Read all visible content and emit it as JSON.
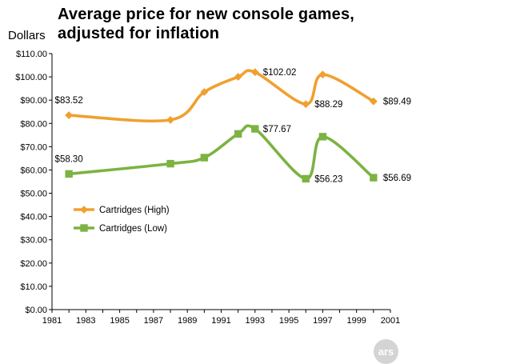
{
  "chart_data": {
    "type": "line",
    "title_lines": [
      "Average price for new console games,",
      "adjusted for inflation"
    ],
    "ylabel": "Dollars",
    "xlabel": "",
    "xlim": [
      1981,
      2001
    ],
    "ylim": [
      0,
      110
    ],
    "x_ticks": [
      "1981",
      "1983",
      "1985",
      "1987",
      "1989",
      "1991",
      "1993",
      "1995",
      "1997",
      "1999",
      "2001"
    ],
    "y_ticks": [
      "$0.00",
      "$10.00",
      "$20.00",
      "$30.00",
      "$40.00",
      "$50.00",
      "$60.00",
      "$70.00",
      "$80.00",
      "$90.00",
      "$100.00",
      "$110.00"
    ],
    "grid": false,
    "legend_position": "left-middle",
    "series": [
      {
        "name": "Cartridges (High)",
        "color": "#f0a030",
        "marker": "diamond",
        "x": [
          1982,
          1988,
          1990,
          1992,
          1993,
          1996,
          1997,
          2000
        ],
        "y": [
          83.52,
          81.5,
          93.5,
          100.0,
          102.02,
          88.29,
          101.0,
          89.49
        ]
      },
      {
        "name": "Cartridges (Low)",
        "color": "#7cb342",
        "marker": "square",
        "x": [
          1982,
          1988,
          1990,
          1992,
          1993,
          1996,
          1997,
          2000
        ],
        "y": [
          58.3,
          62.7,
          65.3,
          75.5,
          77.67,
          56.23,
          74.3,
          56.69
        ]
      }
    ],
    "annotations": [
      {
        "text": "$83.52",
        "x": 1982,
        "y": 83.52
      },
      {
        "text": "$102.02",
        "x": 1993,
        "y": 102.02
      },
      {
        "text": "$88.29",
        "x": 1996,
        "y": 88.29
      },
      {
        "text": "$89.49",
        "x": 2000,
        "y": 89.49
      },
      {
        "text": "$58.30",
        "x": 1982,
        "y": 58.3
      },
      {
        "text": "$77.67",
        "x": 1993,
        "y": 77.67
      },
      {
        "text": "$56.23",
        "x": 1996,
        "y": 56.23
      },
      {
        "text": "$56.69",
        "x": 2000,
        "y": 56.69
      }
    ]
  },
  "watermark": "ars"
}
